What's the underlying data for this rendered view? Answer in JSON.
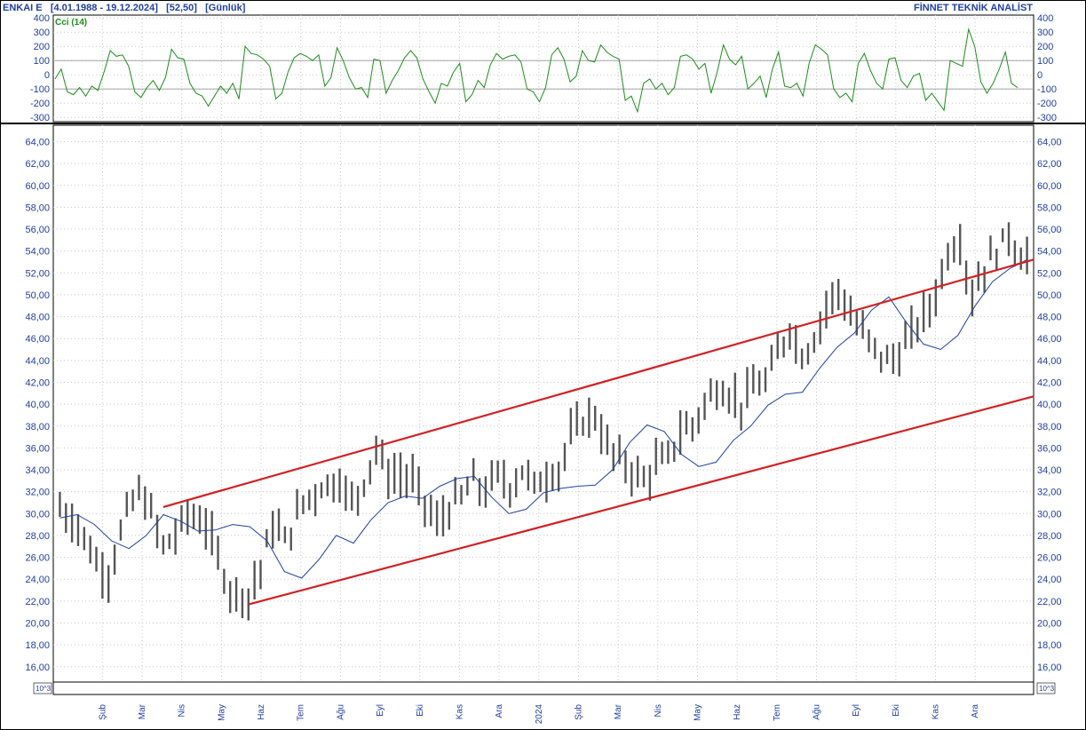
{
  "header": {
    "symbol": "ENKAI E",
    "date_range": "[4.01.1988 - 19.12.2024]",
    "last_price": "[52,50]",
    "period": "[Günlük]",
    "provider": "FİNNET TEKNİK ANALİST"
  },
  "colors": {
    "price_bars": "#555555",
    "moving_average": "#1f3fa8",
    "cci_line": "#1a8f1a",
    "trend_channel": "#d42020",
    "axis_text": "#1f3fa8",
    "grid": "#c8c8c8"
  },
  "chart_data": [
    {
      "type": "line",
      "name": "cci-panel",
      "legend_label": "Cci (14)",
      "yticks": [
        "400",
        "300",
        "200",
        "100",
        "0",
        "-100",
        "-200",
        "-300"
      ],
      "ylim": [
        -330,
        420
      ],
      "reference_levels": [
        100,
        -100
      ],
      "grid": true,
      "series": [
        {
          "name": "Cci (14)",
          "sampled_every_week": true,
          "values": [
            -30,
            40,
            -120,
            -140,
            -90,
            -150,
            -80,
            -110,
            20,
            170,
            130,
            140,
            60,
            -120,
            -160,
            -90,
            -40,
            -110,
            -20,
            180,
            120,
            110,
            -60,
            -130,
            -150,
            -220,
            -150,
            -80,
            -130,
            -60,
            -170,
            200,
            150,
            140,
            110,
            60,
            -170,
            -130,
            20,
            120,
            150,
            130,
            100,
            140,
            -80,
            -20,
            190,
            100,
            -20,
            -100,
            -90,
            -160,
            110,
            100,
            -130,
            -40,
            30,
            120,
            170,
            120,
            -30,
            -120,
            -200,
            -60,
            -80,
            20,
            80,
            -190,
            -140,
            -40,
            -90,
            70,
            150,
            110,
            130,
            140,
            90,
            -100,
            -120,
            -190,
            -90,
            140,
            190,
            110,
            -50,
            -10,
            170,
            100,
            90,
            210,
            160,
            130,
            110,
            -180,
            -150,
            -260,
            -60,
            -30,
            -100,
            -60,
            -140,
            -90,
            130,
            140,
            110,
            40,
            80,
            -130,
            20,
            210,
            110,
            70,
            130,
            -100,
            -60,
            -10,
            -160,
            40,
            160,
            -80,
            -90,
            -60,
            -150,
            80,
            210,
            180,
            140,
            -100,
            -160,
            -130,
            -190,
            80,
            150,
            30,
            -60,
            -100,
            110,
            120,
            -40,
            -90,
            -10,
            10,
            -180,
            -130,
            -190,
            -250,
            100,
            80,
            60,
            320,
            200,
            -50,
            -130,
            -60,
            40,
            160,
            -60,
            -90
          ]
        }
      ]
    },
    {
      "type": "bar",
      "subtype": "ohlc-range",
      "name": "price-panel",
      "yticks": [
        "64,00",
        "62,00",
        "60,00",
        "58,00",
        "56,00",
        "54,00",
        "52,00",
        "50,00",
        "48,00",
        "46,00",
        "44,00",
        "42,00",
        "40,00",
        "38,00",
        "36,00",
        "34,00",
        "32,00",
        "30,00",
        "28,00",
        "26,00",
        "24,00",
        "22,00",
        "20,00",
        "18,00",
        "16,00"
      ],
      "ylim": [
        14.6,
        65.5
      ],
      "grid": true,
      "xlabels": [
        "Şub",
        "Mar",
        "Nis",
        "May",
        "Haz",
        "Tem",
        "Ağu",
        "Eyl",
        "Eki",
        "Kas",
        "Ara",
        "2024",
        "Şub",
        "Mar",
        "Nis",
        "May",
        "Haz",
        "Tem",
        "Ağu",
        "Eyl",
        "Eki",
        "Kas",
        "Ara"
      ],
      "scale_note": "10^3",
      "price_anchors": [
        [
          0,
          30.5
        ],
        [
          3,
          29
        ],
        [
          6,
          25.5
        ],
        [
          8,
          24.5
        ],
        [
          11,
          30
        ],
        [
          13,
          32
        ],
        [
          15,
          30
        ],
        [
          17,
          27
        ],
        [
          19,
          28
        ],
        [
          21,
          30
        ],
        [
          24,
          29
        ],
        [
          26,
          26
        ],
        [
          28,
          23
        ],
        [
          31,
          22.5
        ],
        [
          33,
          25
        ],
        [
          35,
          29
        ],
        [
          37,
          27.5
        ],
        [
          40,
          31
        ],
        [
          43,
          32.5
        ],
        [
          46,
          33
        ],
        [
          48,
          31
        ],
        [
          50,
          33
        ],
        [
          52,
          36
        ],
        [
          54,
          33.5
        ],
        [
          56,
          33.5
        ],
        [
          58,
          33
        ],
        [
          60,
          31
        ],
        [
          62,
          29
        ],
        [
          64,
          30.5
        ],
        [
          66,
          31.5
        ],
        [
          68,
          33
        ],
        [
          70,
          32
        ],
        [
          72,
          33.5
        ],
        [
          74,
          32.5
        ],
        [
          76,
          34
        ],
        [
          78,
          32.5
        ],
        [
          80,
          33.5
        ],
        [
          82,
          34
        ],
        [
          84,
          37
        ],
        [
          86,
          38.5
        ],
        [
          88,
          39
        ],
        [
          90,
          36
        ],
        [
          92,
          35
        ],
        [
          94,
          34
        ],
        [
          96,
          33
        ],
        [
          98,
          34.5
        ],
        [
          100,
          35
        ],
        [
          102,
          37.5
        ],
        [
          104,
          38
        ],
        [
          106,
          40
        ],
        [
          108,
          41.5
        ],
        [
          110,
          41
        ],
        [
          112,
          40
        ],
        [
          114,
          41.5
        ],
        [
          116,
          42
        ],
        [
          118,
          44.5
        ],
        [
          120,
          47
        ],
        [
          122,
          44.5
        ],
        [
          124,
          46
        ],
        [
          126,
          49
        ],
        [
          128,
          50.5
        ],
        [
          130,
          48
        ],
        [
          132,
          46.5
        ],
        [
          134,
          45
        ],
        [
          136,
          44
        ],
        [
          138,
          44.5
        ],
        [
          140,
          46.5
        ],
        [
          142,
          48
        ],
        [
          144,
          50
        ],
        [
          146,
          54
        ],
        [
          148,
          55
        ],
        [
          150,
          50
        ],
        [
          152,
          52.5
        ],
        [
          154,
          54
        ],
        [
          156,
          55.5
        ],
        [
          158,
          53.5
        ]
      ],
      "bar_count": 160,
      "series": [
        {
          "name": "moving-average",
          "values": [
            29.6,
            29.9,
            29.0,
            27.5,
            26.8,
            28.0,
            29.9,
            29.3,
            28.4,
            28.5,
            29.0,
            28.8,
            27.5,
            24.7,
            24.1,
            25.8,
            28.0,
            27.3,
            29.4,
            31.0,
            31.6,
            31.4,
            32.5,
            33.2,
            33.4,
            31.5,
            30.0,
            30.4,
            31.9,
            32.3,
            32.5,
            32.6,
            34.0,
            36.5,
            38.1,
            37.5,
            35.4,
            34.3,
            34.7,
            36.7,
            38.0,
            39.9,
            40.9,
            41.1,
            43.3,
            45.2,
            46.5,
            48.6,
            49.8,
            47.5,
            45.5,
            45.0,
            46.3,
            49.0,
            51.2,
            52.4,
            53.2
          ]
        },
        {
          "name": "upper-trend-line",
          "points": [
            [
              17,
              30.6
            ],
            [
              160,
              53.2
            ]
          ]
        },
        {
          "name": "lower-trend-line",
          "points": [
            [
              31,
              21.7
            ],
            [
              160,
              40.7
            ]
          ]
        }
      ]
    }
  ]
}
